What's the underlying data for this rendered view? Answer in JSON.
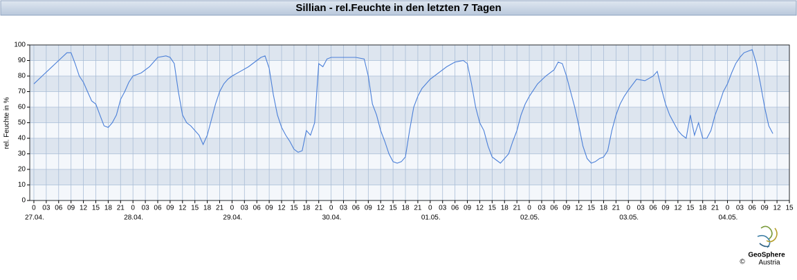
{
  "chart_data": {
    "type": "line",
    "title": "Sillian - rel.Feuchte in den letzten 7 Tagen",
    "y_label": "rel. Feuchte in %",
    "ylim": [
      0,
      100
    ],
    "yticks": [
      0,
      10,
      20,
      30,
      40,
      50,
      60,
      70,
      80,
      90,
      100
    ],
    "xlim": [
      -1,
      183
    ],
    "xticks": [
      0,
      {
        "value": 3,
        "label": "03"
      },
      {
        "value": 6,
        "label": "06"
      },
      {
        "value": 9,
        "label": "09"
      },
      {
        "value": 12,
        "label": "12"
      },
      {
        "value": 15,
        "label": "15"
      },
      {
        "value": 18,
        "label": "18"
      },
      {
        "value": 21,
        "label": "21"
      },
      {
        "value": 24,
        "label": "0"
      },
      {
        "value": 27,
        "label": "03"
      },
      {
        "value": 30,
        "label": "06"
      },
      {
        "value": 33,
        "label": "09"
      },
      {
        "value": 36,
        "label": "12"
      },
      {
        "value": 39,
        "label": "15"
      },
      {
        "value": 42,
        "label": "18"
      },
      {
        "value": 45,
        "label": "21"
      },
      {
        "value": 48,
        "label": "0"
      },
      {
        "value": 51,
        "label": "03"
      },
      {
        "value": 54,
        "label": "06"
      },
      {
        "value": 57,
        "label": "09"
      },
      {
        "value": 60,
        "label": "12"
      },
      {
        "value": 63,
        "label": "15"
      },
      {
        "value": 66,
        "label": "18"
      },
      {
        "value": 69,
        "label": "21"
      },
      {
        "value": 72,
        "label": "0"
      },
      {
        "value": 75,
        "label": "03"
      },
      {
        "value": 78,
        "label": "06"
      },
      {
        "value": 81,
        "label": "09"
      },
      {
        "value": 84,
        "label": "12"
      },
      {
        "value": 87,
        "label": "15"
      },
      {
        "value": 90,
        "label": "18"
      },
      {
        "value": 93,
        "label": "21"
      },
      {
        "value": 96,
        "label": "0"
      },
      {
        "value": 99,
        "label": "03"
      },
      {
        "value": 102,
        "label": "06"
      },
      {
        "value": 105,
        "label": "09"
      },
      {
        "value": 108,
        "label": "12"
      },
      {
        "value": 111,
        "label": "15"
      },
      {
        "value": 114,
        "label": "18"
      },
      {
        "value": 117,
        "label": "21"
      },
      {
        "value": 120,
        "label": "0"
      },
      {
        "value": 123,
        "label": "03"
      },
      {
        "value": 126,
        "label": "06"
      },
      {
        "value": 129,
        "label": "09"
      },
      {
        "value": 132,
        "label": "12"
      },
      {
        "value": 135,
        "label": "15"
      },
      {
        "value": 138,
        "label": "18"
      },
      {
        "value": 141,
        "label": "21"
      },
      {
        "value": 144,
        "label": "0"
      },
      {
        "value": 147,
        "label": "03"
      },
      {
        "value": 150,
        "label": "06"
      },
      {
        "value": 153,
        "label": "09"
      },
      {
        "value": 156,
        "label": "12"
      },
      {
        "value": 159,
        "label": "15"
      },
      {
        "value": 162,
        "label": "18"
      },
      {
        "value": 165,
        "label": "21"
      },
      {
        "value": 168,
        "label": "0"
      },
      {
        "value": 171,
        "label": "03"
      },
      {
        "value": 174,
        "label": "06"
      },
      {
        "value": 177,
        "label": "09"
      },
      {
        "value": 180,
        "label": "12"
      },
      {
        "value": 183,
        "label": "15"
      }
    ],
    "dates": [
      {
        "value": 0,
        "label": "27.04."
      },
      {
        "value": 24,
        "label": "28.04."
      },
      {
        "value": 48,
        "label": "29.04."
      },
      {
        "value": 72,
        "label": "30.04."
      },
      {
        "value": 96,
        "label": "01.05."
      },
      {
        "value": 120,
        "label": "02.05."
      },
      {
        "value": 144,
        "label": "03.05."
      },
      {
        "value": 168,
        "label": "04.05."
      }
    ],
    "grid": true,
    "series": [
      {
        "color": "#4a7fd8",
        "x": [
          0,
          2,
          4,
          6,
          8,
          9,
          10,
          11,
          12,
          13,
          14,
          15,
          16,
          17,
          18,
          19,
          20,
          21,
          22,
          23,
          24,
          26,
          28,
          30,
          32,
          33,
          34,
          35,
          36,
          37,
          38,
          39,
          40,
          41,
          42,
          43,
          44,
          45,
          46,
          47,
          48,
          50,
          52,
          54,
          55,
          56,
          57,
          58,
          59,
          60,
          61,
          62,
          63,
          64,
          65,
          66,
          67,
          68,
          69,
          70,
          71,
          72,
          74,
          76,
          78,
          80,
          81,
          82,
          83,
          84,
          85,
          86,
          87,
          88,
          89,
          90,
          91,
          92,
          93,
          94,
          96,
          98,
          100,
          102,
          104,
          105,
          106,
          107,
          108,
          109,
          110,
          111,
          112,
          113,
          114,
          115,
          116,
          117,
          118,
          119,
          120,
          122,
          124,
          126,
          127,
          128,
          129,
          130,
          131,
          132,
          133,
          134,
          135,
          136,
          137,
          138,
          139,
          140,
          141,
          142,
          143,
          144,
          146,
          148,
          150,
          151,
          152,
          153,
          154,
          155,
          156,
          157,
          158,
          159,
          160,
          161,
          162,
          163,
          164,
          165,
          166,
          167,
          168,
          169,
          170,
          171,
          172,
          173,
          174,
          175,
          176,
          177,
          178,
          179
        ],
        "values": [
          75,
          80,
          85,
          90,
          95,
          95,
          88,
          80,
          76,
          70,
          64,
          62,
          55,
          48,
          47,
          50,
          55,
          65,
          70,
          76,
          80,
          82,
          86,
          92,
          93,
          92,
          88,
          70,
          55,
          50,
          48,
          45,
          42,
          36,
          42,
          52,
          62,
          70,
          75,
          78,
          80,
          83,
          86,
          90,
          92,
          93,
          85,
          68,
          55,
          47,
          42,
          38,
          33,
          31,
          32,
          45,
          42,
          50,
          88,
          86,
          91,
          92,
          92,
          92,
          92,
          91,
          80,
          62,
          55,
          45,
          38,
          30,
          25,
          24,
          25,
          28,
          45,
          60,
          67,
          72,
          78,
          82,
          86,
          89,
          90,
          88,
          75,
          60,
          50,
          45,
          35,
          28,
          26,
          24,
          27,
          30,
          38,
          45,
          55,
          62,
          67,
          75,
          80,
          84,
          89,
          88,
          80,
          70,
          60,
          48,
          35,
          27,
          24,
          25,
          27,
          28,
          32,
          45,
          55,
          62,
          67,
          71,
          78,
          77,
          80,
          83,
          72,
          62,
          55,
          50,
          45,
          42,
          40,
          55,
          42,
          50,
          40,
          40,
          45,
          55,
          62,
          70,
          75,
          82,
          88,
          92,
          95,
          96,
          97,
          88,
          75,
          60,
          48,
          43
        ]
      }
    ]
  },
  "footer": {
    "copyright": "©",
    "brand": "GeoSphere",
    "brand_sub": "Austria"
  }
}
